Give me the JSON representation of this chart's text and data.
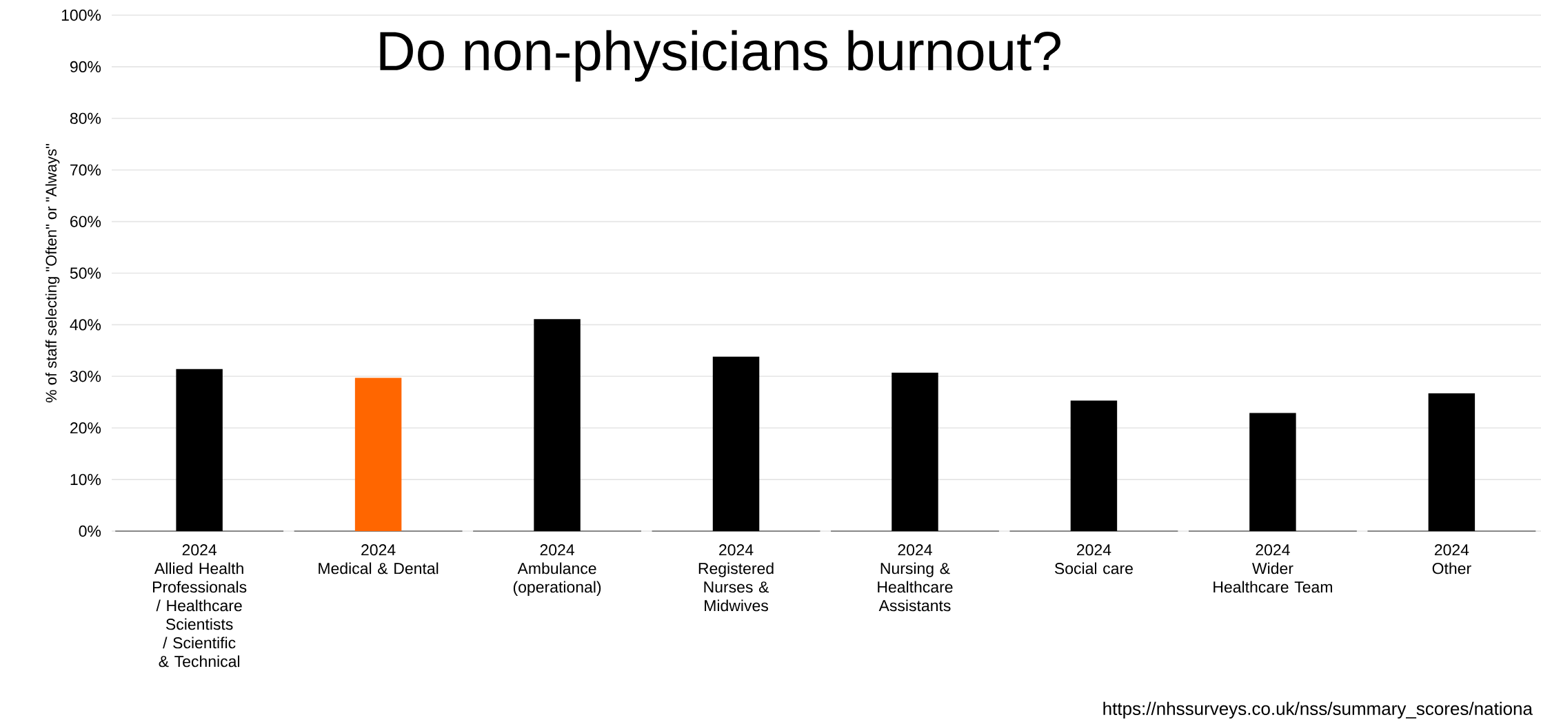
{
  "chart_data": {
    "type": "bar",
    "title": "Do non-physicians burnout?",
    "ylabel": "% of staff selecting \"Often\" or \"Always\"",
    "categories": [
      "Allied Health Professionals / Healthcare Scientists / Scientific & Technical",
      "Medical & Dental",
      "Ambulance (operational)",
      "Registered Nurses & Midwives",
      "Nursing & Healthcare Assistants",
      "Social care",
      "Wider Healthcare Team",
      "Other"
    ],
    "series": [
      {
        "name": "2024",
        "values": [
          31.4,
          29.7,
          41.1,
          33.8,
          30.7,
          25.3,
          22.9,
          26.7
        ]
      }
    ],
    "colors": [
      "#000000",
      "#ff6600",
      "#000000",
      "#000000",
      "#000000",
      "#000000",
      "#000000",
      "#000000"
    ],
    "ylim": [
      0,
      100
    ],
    "yticks": [
      {
        "value": 0,
        "label": "0%"
      },
      {
        "value": 10,
        "label": "10%"
      },
      {
        "value": 20,
        "label": "20%"
      },
      {
        "value": 30,
        "label": "30%"
      },
      {
        "value": 40,
        "label": "40%"
      },
      {
        "value": 50,
        "label": "50%"
      },
      {
        "value": 60,
        "label": "60%"
      },
      {
        "value": 70,
        "label": "70%"
      },
      {
        "value": 80,
        "label": "80%"
      },
      {
        "value": 90,
        "label": "90%"
      },
      {
        "value": 100,
        "label": "100%"
      }
    ],
    "grid": "y",
    "annotations": [
      "https://nhssurveys.co.uk/nss/summary_scores/nationa"
    ]
  }
}
